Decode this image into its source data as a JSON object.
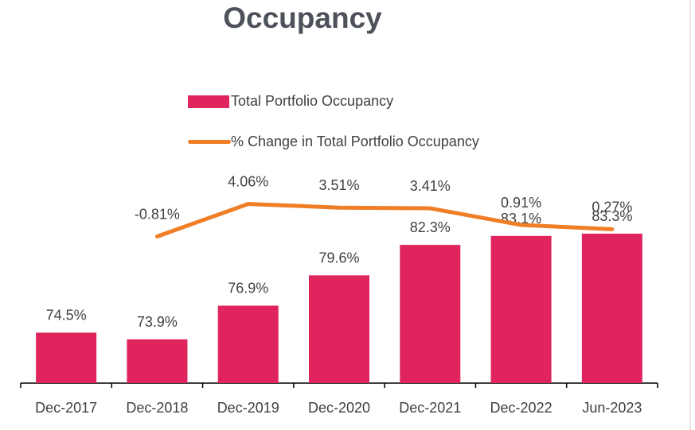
{
  "title": "Occupancy",
  "legend": {
    "bar_label": "Total Portfolio Occupancy",
    "line_label": "% Change in Total Portfolio Occupancy"
  },
  "colors": {
    "bar": "#e0245e",
    "line": "#f07e26",
    "text": "#404040",
    "title": "#4d515a"
  },
  "chart_data": {
    "type": "bar",
    "title": "Occupancy",
    "categories": [
      "Dec-2017",
      "Dec-2018",
      "Dec-2019",
      "Dec-2020",
      "Dec-2021",
      "Dec-2022",
      "Jun-2023"
    ],
    "series": [
      {
        "name": "Total Portfolio Occupancy",
        "type": "bar",
        "values": [
          74.5,
          73.9,
          76.9,
          79.6,
          82.3,
          83.1,
          83.3
        ],
        "labels": [
          "74.5%",
          "73.9%",
          "76.9%",
          "79.6%",
          "82.3%",
          "83.1%",
          "83.3%"
        ]
      },
      {
        "name": "% Change in Total Portfolio Occupancy",
        "type": "line",
        "values": [
          null,
          -0.81,
          4.06,
          3.51,
          3.41,
          0.91,
          0.27
        ],
        "labels": [
          "",
          "-0.81%",
          "4.06%",
          "3.51%",
          "3.41%",
          "0.91%",
          "0.27%"
        ]
      }
    ],
    "xlabel": "",
    "ylabel": "",
    "grid": false,
    "legend_position": "top"
  }
}
